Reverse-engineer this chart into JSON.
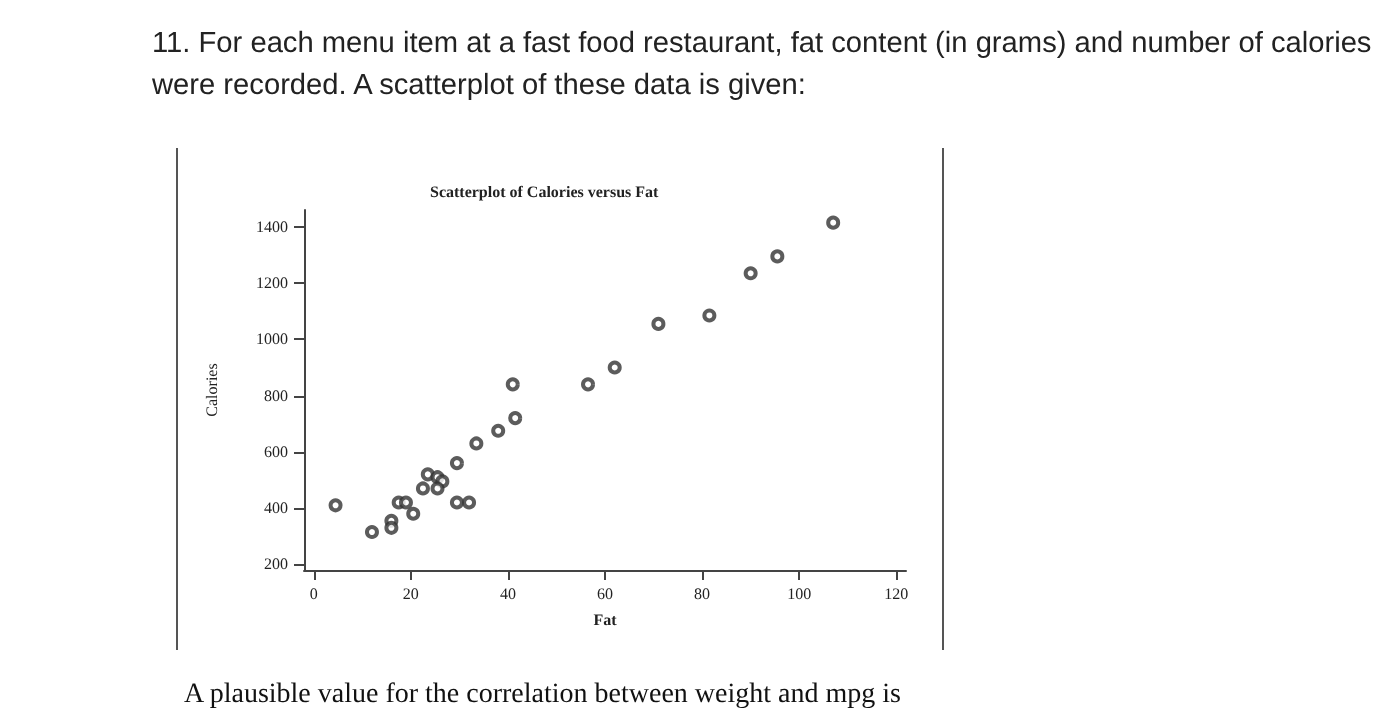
{
  "chart_data": {
    "type": "scatter",
    "title": "Scatterplot of Calories versus Fat",
    "xlabel": "Fat",
    "ylabel": "Calories",
    "annotations": [
      "11. For each menu item at a fast food restaurant, fat content (in grams) and number of calories were recorded. A scatterplot of these data is given:",
      "A plausible value for the correlation between weight and mpg is"
    ],
    "x": [
      4.5,
      12,
      16,
      16,
      17.5,
      19,
      20.5,
      22.5,
      23.5,
      25.5,
      26.5,
      25.5,
      29.5,
      29.5,
      32,
      33.5,
      38,
      41.5,
      41,
      56.5,
      62,
      71,
      81.5,
      90,
      95.5,
      107
    ],
    "values": [
      410,
      315,
      355,
      330,
      420,
      420,
      380,
      470,
      520,
      510,
      495,
      470,
      560,
      420,
      420,
      630,
      675,
      720,
      840,
      840,
      900,
      1055,
      1085,
      1235,
      1295,
      1415
    ],
    "color": "#333333",
    "marker": "circle",
    "xlim": [
      -2,
      122
    ],
    "xticks": [
      0,
      20,
      40,
      60,
      80,
      100,
      120
    ],
    "ylim": [
      180,
      1460
    ],
    "yticks": [
      200,
      400,
      600,
      800,
      1000,
      1200,
      1400
    ],
    "grid": false
  }
}
